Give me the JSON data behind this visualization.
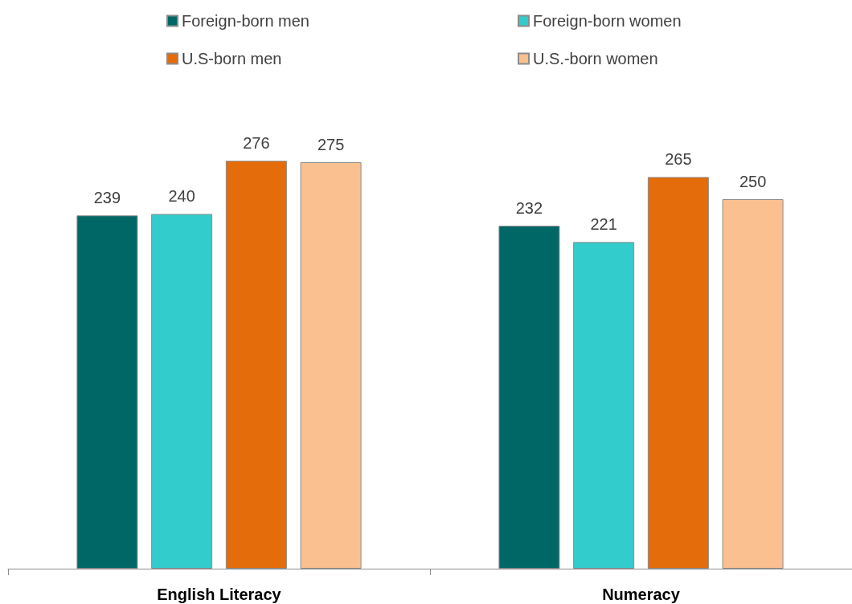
{
  "chart_data": {
    "type": "bar",
    "categories": [
      "English Literacy",
      "Numeracy"
    ],
    "series": [
      {
        "name": "Foreign-born men",
        "color": "#006666",
        "values": [
          239,
          232
        ]
      },
      {
        "name": "Foreign-born women",
        "color": "#33cccc",
        "values": [
          240,
          221
        ]
      },
      {
        "name": "U.S-born men",
        "color": "#e46c0a",
        "values": [
          276,
          265
        ]
      },
      {
        "name": "U.S.-born women",
        "color": "#fac090",
        "values": [
          275,
          250
        ]
      }
    ],
    "data_labels": true,
    "legend": "top",
    "grid": false,
    "tick_labels": "x"
  }
}
